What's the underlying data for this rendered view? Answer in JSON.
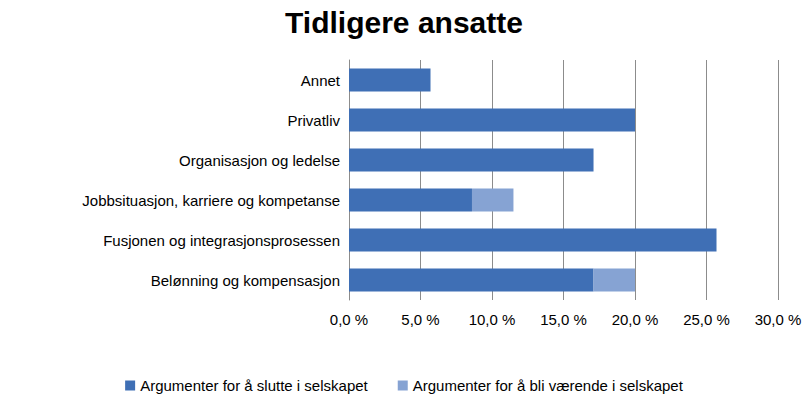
{
  "chart_data": {
    "type": "bar",
    "title": "Tidligere ansatte",
    "orientation": "horizontal",
    "stacked": true,
    "grid": true,
    "legend": "bottom",
    "categories": [
      "Annet",
      "Privatliv",
      "Organisasjon og ledelse",
      "Jobbsituasjon, karriere og kompetanse",
      "Fusjonen og integrasjonsprosessen",
      "Belønning og kompensasjon"
    ],
    "series": [
      {
        "name": "Argumenter for å slutte i selskapet",
        "color": "#3f6fb5",
        "values": [
          5.7,
          20.0,
          17.1,
          8.6,
          25.7,
          17.1
        ]
      },
      {
        "name": "Argumenter for å bli værende i selskapet",
        "color": "#86a3d3",
        "values": [
          0,
          0,
          0,
          2.9,
          0,
          2.9
        ]
      }
    ],
    "xlim": [
      0,
      30
    ],
    "xticks": [
      {
        "value": 0,
        "label": "0,0 %"
      },
      {
        "value": 5,
        "label": "5,0 %"
      },
      {
        "value": 10,
        "label": "10,0 %"
      },
      {
        "value": 15,
        "label": "15,0 %"
      },
      {
        "value": 20,
        "label": "20,0 %"
      },
      {
        "value": 25,
        "label": "25,0 %"
      },
      {
        "value": 30,
        "label": "30,0 %"
      }
    ]
  }
}
